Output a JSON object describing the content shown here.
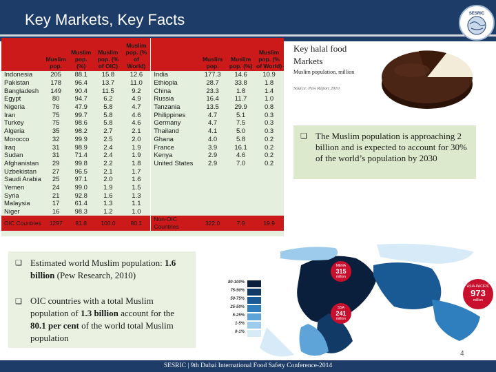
{
  "header": {
    "title": "Key Markets, Key Facts",
    "logo_text": "SESRIC"
  },
  "table": {
    "left_headers": [
      "",
      "Muslim pop.",
      "Muslim pop. (%)",
      "Muslim pop. (% of OIC)",
      "Muslim pop. (% of World)"
    ],
    "right_headers": [
      "",
      "Muslim pop.",
      "Muslim pop. (%)",
      "Muslim pop. (% of World)"
    ],
    "rows": [
      [
        "Indonesia",
        "205",
        "88.1",
        "15.8",
        "12.6",
        "India",
        "177.3",
        "14.6",
        "10.9"
      ],
      [
        "Pakistan",
        "178",
        "96.4",
        "13.7",
        "11.0",
        "Ethiopia",
        "28.7",
        "33.8",
        "1.8"
      ],
      [
        "Bangladesh",
        "149",
        "90.4",
        "11.5",
        "9.2",
        "China",
        "23.3",
        "1.8",
        "1.4"
      ],
      [
        "Egypt",
        "80",
        "94.7",
        "6.2",
        "4.9",
        "Russia",
        "16.4",
        "11.7",
        "1.0"
      ],
      [
        "Nigeria",
        "76",
        "47.9",
        "5.8",
        "4.7",
        "Tanzania",
        "13.5",
        "29.9",
        "0.8"
      ],
      [
        "Iran",
        "75",
        "99.7",
        "5.8",
        "4.6",
        "Philippines",
        "4.7",
        "5.1",
        "0.3"
      ],
      [
        "Turkey",
        "75",
        "98.6",
        "5.8",
        "4.6",
        "Germany",
        "4.7",
        "7.5",
        "0.3"
      ],
      [
        "Algeria",
        "35",
        "98.2",
        "2.7",
        "2.1",
        "Thailand",
        "4.1",
        "5.0",
        "0.3"
      ],
      [
        "Morocco",
        "32",
        "99.9",
        "2.5",
        "2.0",
        "Ghana",
        "4.0",
        "5.8",
        "0.2"
      ],
      [
        "Iraq",
        "31",
        "98.9",
        "2.4",
        "1.9",
        "France",
        "3.9",
        "16.1",
        "0.2"
      ],
      [
        "Sudan",
        "31",
        "71.4",
        "2.4",
        "1.9",
        "Kenya",
        "2.9",
        "4.6",
        "0.2"
      ],
      [
        "Afghanistan",
        "29",
        "99.8",
        "2.2",
        "1.8",
        "United States",
        "2.9",
        "7.0",
        "0.2"
      ],
      [
        "Uzbekistan",
        "27",
        "96.5",
        "2.1",
        "1.7",
        "",
        "",
        "",
        ""
      ],
      [
        "Saudi Arabia",
        "25",
        "97.1",
        "2.0",
        "1.6",
        "",
        "",
        "",
        ""
      ],
      [
        "Yemen",
        "24",
        "99.0",
        "1.9",
        "1.5",
        "",
        "",
        "",
        ""
      ],
      [
        "Syria",
        "21",
        "92.8",
        "1.6",
        "1.3",
        "",
        "",
        "",
        ""
      ],
      [
        "Malaysia",
        "17",
        "61.4",
        "1.3",
        "1.1",
        "",
        "",
        "",
        ""
      ],
      [
        "Niger",
        "16",
        "98.3",
        "1.2",
        "1.0",
        "",
        "",
        "",
        ""
      ]
    ],
    "total": [
      "OIC Countries",
      "1297",
      "81.8",
      "100.0",
      "80.1",
      "Non-OIC Countries",
      "322.0",
      "7.9",
      "19.9"
    ]
  },
  "halal": {
    "title": "Key halal food Markets",
    "subtitle": "Muslim population, million",
    "source": "Source: Pew Report 2010"
  },
  "bullet_green": "The Muslim population is approaching 2 billion and is expected to account for 30% of the world’s population by 2030",
  "bullets_low": [
    {
      "pre": "Estimated world Muslim population: ",
      "bold": "1.6 billion",
      "post": " (Pew Research, 2010)"
    },
    {
      "pre": "OIC countries with a total Muslim population of ",
      "bold": "1.3 billion",
      "mid": " account for the ",
      "bold2": "80.1 per cent",
      "post": " of the world total Muslim population"
    }
  ],
  "map_legend": [
    "80-100%",
    "75-90%",
    "50-75%",
    "25-50%",
    "5-25%",
    "1-5%",
    "0-1%"
  ],
  "map_legend_colors": [
    "#0a1f3c",
    "#123a66",
    "#1a5a94",
    "#2f7fbf",
    "#5fa4d8",
    "#9ccbeb",
    "#d6ebf7"
  ],
  "badges": [
    {
      "region": "MENA",
      "value": "315",
      "unit": "million"
    },
    {
      "region": "SSA",
      "value": "241",
      "unit": "million"
    },
    {
      "region": "ASIA-PACIFIC",
      "value": "973",
      "unit": "million"
    }
  ],
  "page_number": "4",
  "footer": "SESRIC | 9th Dubai International Food Safety Conference-2014"
}
